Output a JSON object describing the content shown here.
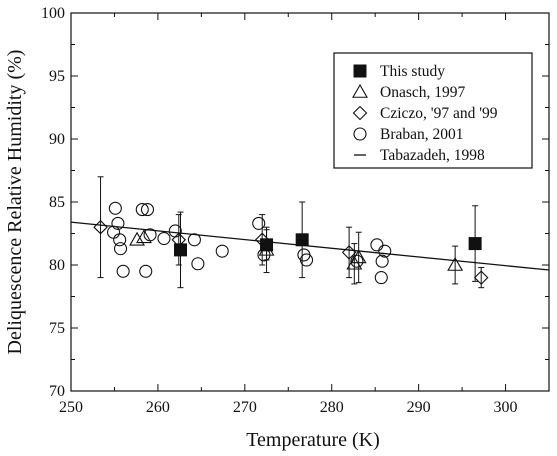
{
  "chart_data": {
    "type": "scatter",
    "xlabel": "Temperature (K)",
    "ylabel": "Deliquescence Relative Humidity (%)",
    "xlim": [
      250,
      305
    ],
    "ylim": [
      70,
      100
    ],
    "xticks": [
      250,
      260,
      270,
      280,
      290,
      300
    ],
    "yticks": [
      70,
      75,
      80,
      85,
      90,
      95,
      100
    ],
    "grid": false,
    "legend_position": "top-right",
    "series": [
      {
        "name": "This study",
        "marker": "filled-square",
        "points": [
          {
            "x": 262.6,
            "y": 81.2,
            "err": 3.0
          },
          {
            "x": 272.5,
            "y": 81.6,
            "err": 1.2
          },
          {
            "x": 276.6,
            "y": 82.0,
            "err": 3.0
          },
          {
            "x": 296.5,
            "y": 81.7,
            "err": 3.0
          }
        ]
      },
      {
        "name": "Onasch, 1997",
        "marker": "open-triangle",
        "points": [
          {
            "x": 257.6,
            "y": 82.0,
            "err": 0
          },
          {
            "x": 258.4,
            "y": 82.2,
            "err": 0
          },
          {
            "x": 272.5,
            "y": 81.2,
            "err": 1.8
          },
          {
            "x": 282.6,
            "y": 80.1,
            "err": 1.6
          },
          {
            "x": 283.1,
            "y": 80.6,
            "err": 2.0
          },
          {
            "x": 294.2,
            "y": 80.0,
            "err": 1.5
          }
        ]
      },
      {
        "name": "Cziczo, '97 and '99",
        "marker": "open-diamond",
        "points": [
          {
            "x": 253.4,
            "y": 83.0,
            "err": 4.0
          },
          {
            "x": 262.4,
            "y": 82.0,
            "err": 2.0
          },
          {
            "x": 272.0,
            "y": 82.0,
            "err": 2.0
          },
          {
            "x": 282.0,
            "y": 81.0,
            "err": 2.0
          },
          {
            "x": 297.2,
            "y": 79.0,
            "err": 0.8
          }
        ]
      },
      {
        "name": "Braban, 2001",
        "marker": "open-circle",
        "points": [
          {
            "x": 254.9,
            "y": 82.6
          },
          {
            "x": 255.1,
            "y": 84.5
          },
          {
            "x": 255.4,
            "y": 83.3
          },
          {
            "x": 255.6,
            "y": 82.0
          },
          {
            "x": 255.7,
            "y": 81.3
          },
          {
            "x": 256.0,
            "y": 79.5
          },
          {
            "x": 258.2,
            "y": 84.4
          },
          {
            "x": 258.8,
            "y": 84.4
          },
          {
            "x": 258.6,
            "y": 79.5
          },
          {
            "x": 259.1,
            "y": 82.4
          },
          {
            "x": 260.7,
            "y": 82.1
          },
          {
            "x": 262.0,
            "y": 82.7
          },
          {
            "x": 264.2,
            "y": 82.0
          },
          {
            "x": 264.6,
            "y": 80.1
          },
          {
            "x": 267.4,
            "y": 81.1
          },
          {
            "x": 271.6,
            "y": 83.3
          },
          {
            "x": 272.2,
            "y": 80.8
          },
          {
            "x": 276.8,
            "y": 80.8
          },
          {
            "x": 277.1,
            "y": 80.4
          },
          {
            "x": 282.9,
            "y": 80.3
          },
          {
            "x": 285.2,
            "y": 81.6
          },
          {
            "x": 285.8,
            "y": 80.3
          },
          {
            "x": 285.7,
            "y": 79.0
          },
          {
            "x": 286.1,
            "y": 81.1
          }
        ]
      },
      {
        "name": "Tabazadeh, 1998",
        "marker": "line",
        "type": "line",
        "x": [
          250,
          305
        ],
        "y": [
          83.4,
          79.6
        ]
      }
    ]
  }
}
